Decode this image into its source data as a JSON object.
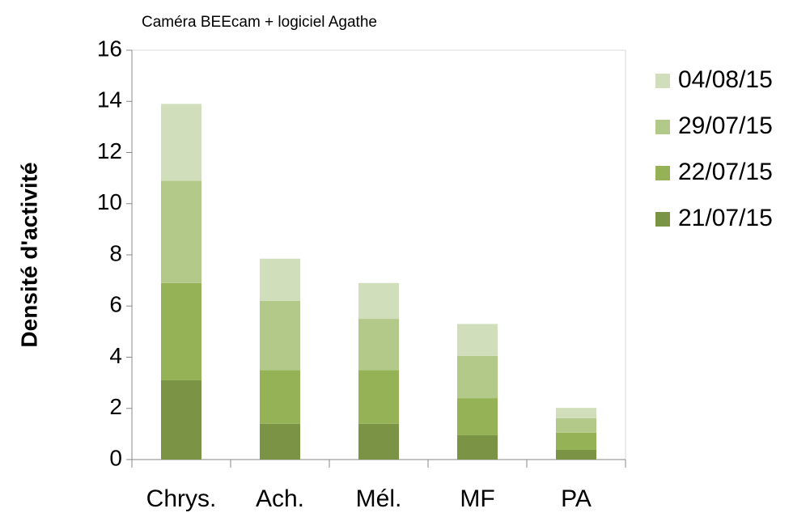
{
  "chart_data": {
    "type": "stacked_bar",
    "title": "Caméra BEEcam + logiciel Agathe",
    "y_label": "Densité d'activité",
    "categories": [
      "Chrys.",
      "Ach.",
      "Mél.",
      "MF",
      "PA"
    ],
    "series": [
      {
        "name": "21/07/15",
        "color": "#7a9344",
        "values": [
          3.1,
          1.4,
          1.4,
          0.95,
          0.38
        ]
      },
      {
        "name": "22/07/15",
        "color": "#95b356",
        "values": [
          3.8,
          2.1,
          2.1,
          1.45,
          0.67
        ]
      },
      {
        "name": "29/07/15",
        "color": "#b2c98a",
        "values": [
          4.0,
          2.7,
          2.0,
          1.65,
          0.57
        ]
      },
      {
        "name": "04/08/15",
        "color": "#d1debb",
        "values": [
          3.0,
          1.65,
          1.4,
          1.25,
          0.4
        ]
      }
    ],
    "ylim": [
      0,
      16
    ],
    "yticks": [
      0,
      2,
      4,
      6,
      8,
      10,
      12,
      14,
      16
    ],
    "legend": "right"
  }
}
